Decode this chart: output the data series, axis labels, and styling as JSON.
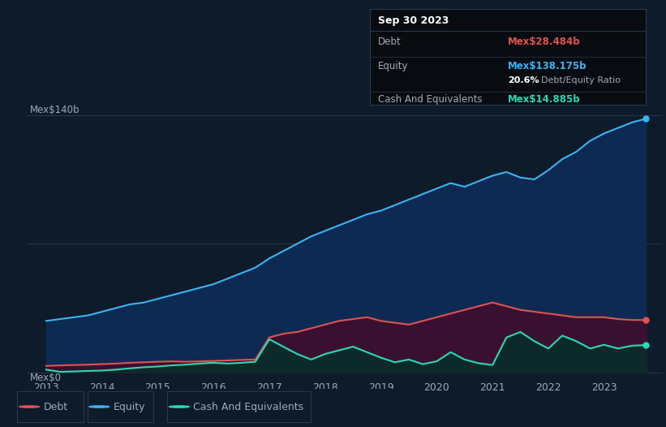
{
  "bg_color": "#0d1b2a",
  "plot_bg_color": "#0d1b2a",
  "title": "Sep 30 2023",
  "debt_label": "Debt",
  "equity_label": "Equity",
  "cash_label": "Cash And Equivalents",
  "debt_value": "Mex$28.484b",
  "equity_value": "Mex$138.175b",
  "ratio_value": "20.6%",
  "ratio_label": "Debt/Equity Ratio",
  "cash_value": "Mex$14.885b",
  "debt_color": "#e05252",
  "equity_color": "#3ab4f5",
  "cash_color": "#2dd8b4",
  "ylabel_top": "Mex$140b",
  "ylabel_bottom": "Mex$0",
  "xlim_start": 2012.65,
  "xlim_end": 2024.05,
  "ylim_min": -3,
  "ylim_max": 148,
  "x_ticks": [
    2013,
    2014,
    2015,
    2016,
    2017,
    2018,
    2019,
    2020,
    2021,
    2022,
    2023
  ],
  "equity_data": [
    [
      2013.0,
      28
    ],
    [
      2013.25,
      29
    ],
    [
      2013.5,
      30
    ],
    [
      2013.75,
      31
    ],
    [
      2014.0,
      33
    ],
    [
      2014.25,
      35
    ],
    [
      2014.5,
      37
    ],
    [
      2014.75,
      38
    ],
    [
      2015.0,
      40
    ],
    [
      2015.25,
      42
    ],
    [
      2015.5,
      44
    ],
    [
      2015.75,
      46
    ],
    [
      2016.0,
      48
    ],
    [
      2016.25,
      51
    ],
    [
      2016.5,
      54
    ],
    [
      2016.75,
      57
    ],
    [
      2017.0,
      62
    ],
    [
      2017.25,
      66
    ],
    [
      2017.5,
      70
    ],
    [
      2017.75,
      74
    ],
    [
      2018.0,
      77
    ],
    [
      2018.25,
      80
    ],
    [
      2018.5,
      83
    ],
    [
      2018.75,
      86
    ],
    [
      2019.0,
      88
    ],
    [
      2019.25,
      91
    ],
    [
      2019.5,
      94
    ],
    [
      2019.75,
      97
    ],
    [
      2020.0,
      100
    ],
    [
      2020.25,
      103
    ],
    [
      2020.5,
      101
    ],
    [
      2020.75,
      104
    ],
    [
      2021.0,
      107
    ],
    [
      2021.25,
      109
    ],
    [
      2021.5,
      106
    ],
    [
      2021.75,
      105
    ],
    [
      2022.0,
      110
    ],
    [
      2022.25,
      116
    ],
    [
      2022.5,
      120
    ],
    [
      2022.75,
      126
    ],
    [
      2023.0,
      130
    ],
    [
      2023.25,
      133
    ],
    [
      2023.5,
      136
    ],
    [
      2023.75,
      138
    ]
  ],
  "debt_data": [
    [
      2013.0,
      3.5
    ],
    [
      2013.25,
      3.8
    ],
    [
      2013.5,
      4.0
    ],
    [
      2013.75,
      4.2
    ],
    [
      2014.0,
      4.5
    ],
    [
      2014.25,
      4.8
    ],
    [
      2014.5,
      5.2
    ],
    [
      2014.75,
      5.5
    ],
    [
      2015.0,
      5.8
    ],
    [
      2015.25,
      6.0
    ],
    [
      2015.5,
      5.8
    ],
    [
      2015.75,
      6.0
    ],
    [
      2016.0,
      6.2
    ],
    [
      2016.25,
      6.5
    ],
    [
      2016.5,
      6.8
    ],
    [
      2016.75,
      7.0
    ],
    [
      2017.0,
      19
    ],
    [
      2017.25,
      21
    ],
    [
      2017.5,
      22
    ],
    [
      2017.75,
      24
    ],
    [
      2018.0,
      26
    ],
    [
      2018.25,
      28
    ],
    [
      2018.5,
      29
    ],
    [
      2018.75,
      30
    ],
    [
      2019.0,
      28
    ],
    [
      2019.25,
      27
    ],
    [
      2019.5,
      26
    ],
    [
      2019.75,
      28
    ],
    [
      2020.0,
      30
    ],
    [
      2020.25,
      32
    ],
    [
      2020.5,
      34
    ],
    [
      2020.75,
      36
    ],
    [
      2021.0,
      38
    ],
    [
      2021.25,
      36
    ],
    [
      2021.5,
      34
    ],
    [
      2021.75,
      33
    ],
    [
      2022.0,
      32
    ],
    [
      2022.25,
      31
    ],
    [
      2022.5,
      30
    ],
    [
      2022.75,
      30
    ],
    [
      2023.0,
      30
    ],
    [
      2023.25,
      29
    ],
    [
      2023.5,
      28.5
    ],
    [
      2023.75,
      28.484
    ]
  ],
  "cash_data": [
    [
      2013.0,
      1.5
    ],
    [
      2013.25,
      0.3
    ],
    [
      2013.5,
      0.5
    ],
    [
      2013.75,
      0.8
    ],
    [
      2014.0,
      1.0
    ],
    [
      2014.25,
      1.5
    ],
    [
      2014.5,
      2.2
    ],
    [
      2014.75,
      2.8
    ],
    [
      2015.0,
      3.2
    ],
    [
      2015.25,
      3.8
    ],
    [
      2015.5,
      4.2
    ],
    [
      2015.75,
      4.8
    ],
    [
      2016.0,
      5.2
    ],
    [
      2016.25,
      4.8
    ],
    [
      2016.5,
      5.2
    ],
    [
      2016.75,
      5.8
    ],
    [
      2017.0,
      18
    ],
    [
      2017.25,
      14
    ],
    [
      2017.5,
      10
    ],
    [
      2017.75,
      7
    ],
    [
      2018.0,
      10
    ],
    [
      2018.25,
      12
    ],
    [
      2018.5,
      14
    ],
    [
      2018.75,
      11
    ],
    [
      2019.0,
      8
    ],
    [
      2019.25,
      5.5
    ],
    [
      2019.5,
      7
    ],
    [
      2019.75,
      4.5
    ],
    [
      2020.0,
      6
    ],
    [
      2020.25,
      11
    ],
    [
      2020.5,
      7
    ],
    [
      2020.75,
      5
    ],
    [
      2021.0,
      4
    ],
    [
      2021.25,
      19
    ],
    [
      2021.5,
      22
    ],
    [
      2021.75,
      17
    ],
    [
      2022.0,
      13
    ],
    [
      2022.25,
      20
    ],
    [
      2022.5,
      17
    ],
    [
      2022.75,
      13
    ],
    [
      2023.0,
      15
    ],
    [
      2023.25,
      13
    ],
    [
      2023.5,
      14.5
    ],
    [
      2023.75,
      14.885
    ]
  ],
  "grid_color": "#2a3a50",
  "text_color": "#a0aab8",
  "tooltip_bg": "#080c10",
  "legend_border_color": "#2a3a50",
  "equity_fill_color": "#0d2a52",
  "debt_fill_color": "#3a1030",
  "cash_fill_color": "#0d2a2a"
}
